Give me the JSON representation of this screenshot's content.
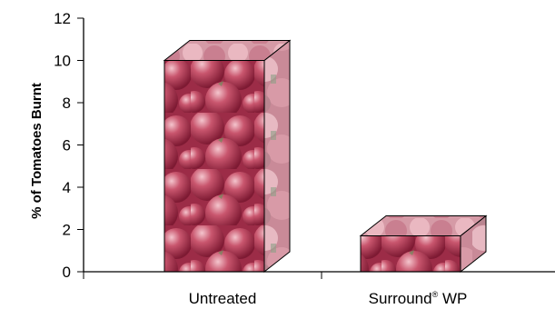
{
  "chart_data": {
    "type": "bar",
    "categories": [
      "Untreated",
      "Surround WP"
    ],
    "category_labels": [
      {
        "main": "Untreated",
        "sup": ""
      },
      {
        "main": "Surround",
        "sup": "®",
        "suffix": " WP"
      }
    ],
    "values": [
      10,
      1.7
    ],
    "ylabel": "% of Tomatoes Burnt",
    "xlabel": "",
    "ylim": [
      0,
      12
    ],
    "yticks": [
      0,
      2,
      4,
      6,
      8,
      10,
      12
    ],
    "grid": false,
    "bar_style": "3d-photo-texture-tomatoes",
    "colors": {
      "tomato_dark": "#8e1f3a",
      "tomato_mid": "#c0485f",
      "tomato_light": "#e8a7b4",
      "leaf": "#6f8a5c",
      "axis": "#000000"
    }
  }
}
